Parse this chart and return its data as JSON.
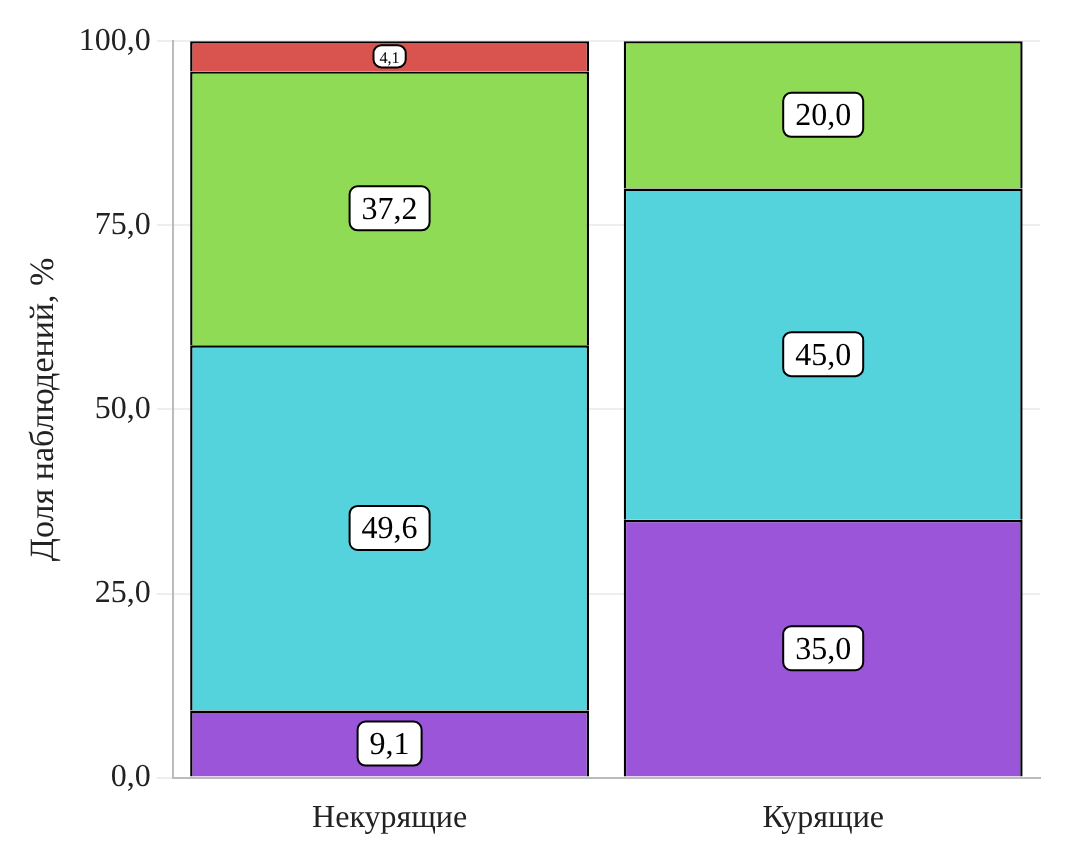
{
  "chart_data": {
    "type": "bar",
    "stacked": true,
    "ylabel": "Доля наблюдений, %",
    "categories": [
      "Некурящие",
      "Курящие"
    ],
    "series": [
      {
        "color": "#9b55d9",
        "values": [
          9.1,
          35.0
        ],
        "value_labels": [
          "9,1",
          "35,0"
        ]
      },
      {
        "color": "#55d3dc",
        "values": [
          49.6,
          45.0
        ],
        "value_labels": [
          "49,6",
          "45,0"
        ]
      },
      {
        "color": "#8fdb55",
        "values": [
          37.2,
          20.0
        ],
        "value_labels": [
          "37,2",
          "20,0"
        ]
      },
      {
        "color": "#d9534f",
        "values": [
          4.1,
          null
        ],
        "value_labels": [
          "4,1",
          null
        ]
      }
    ],
    "ylim": [
      0,
      100
    ],
    "yticks": [
      {
        "value": 0,
        "label": "0,0"
      },
      {
        "value": 25,
        "label": "25,0"
      },
      {
        "value": 50,
        "label": "50,0"
      },
      {
        "value": 75,
        "label": "75,0"
      },
      {
        "value": 100,
        "label": "100,0"
      }
    ],
    "grid": "y"
  }
}
